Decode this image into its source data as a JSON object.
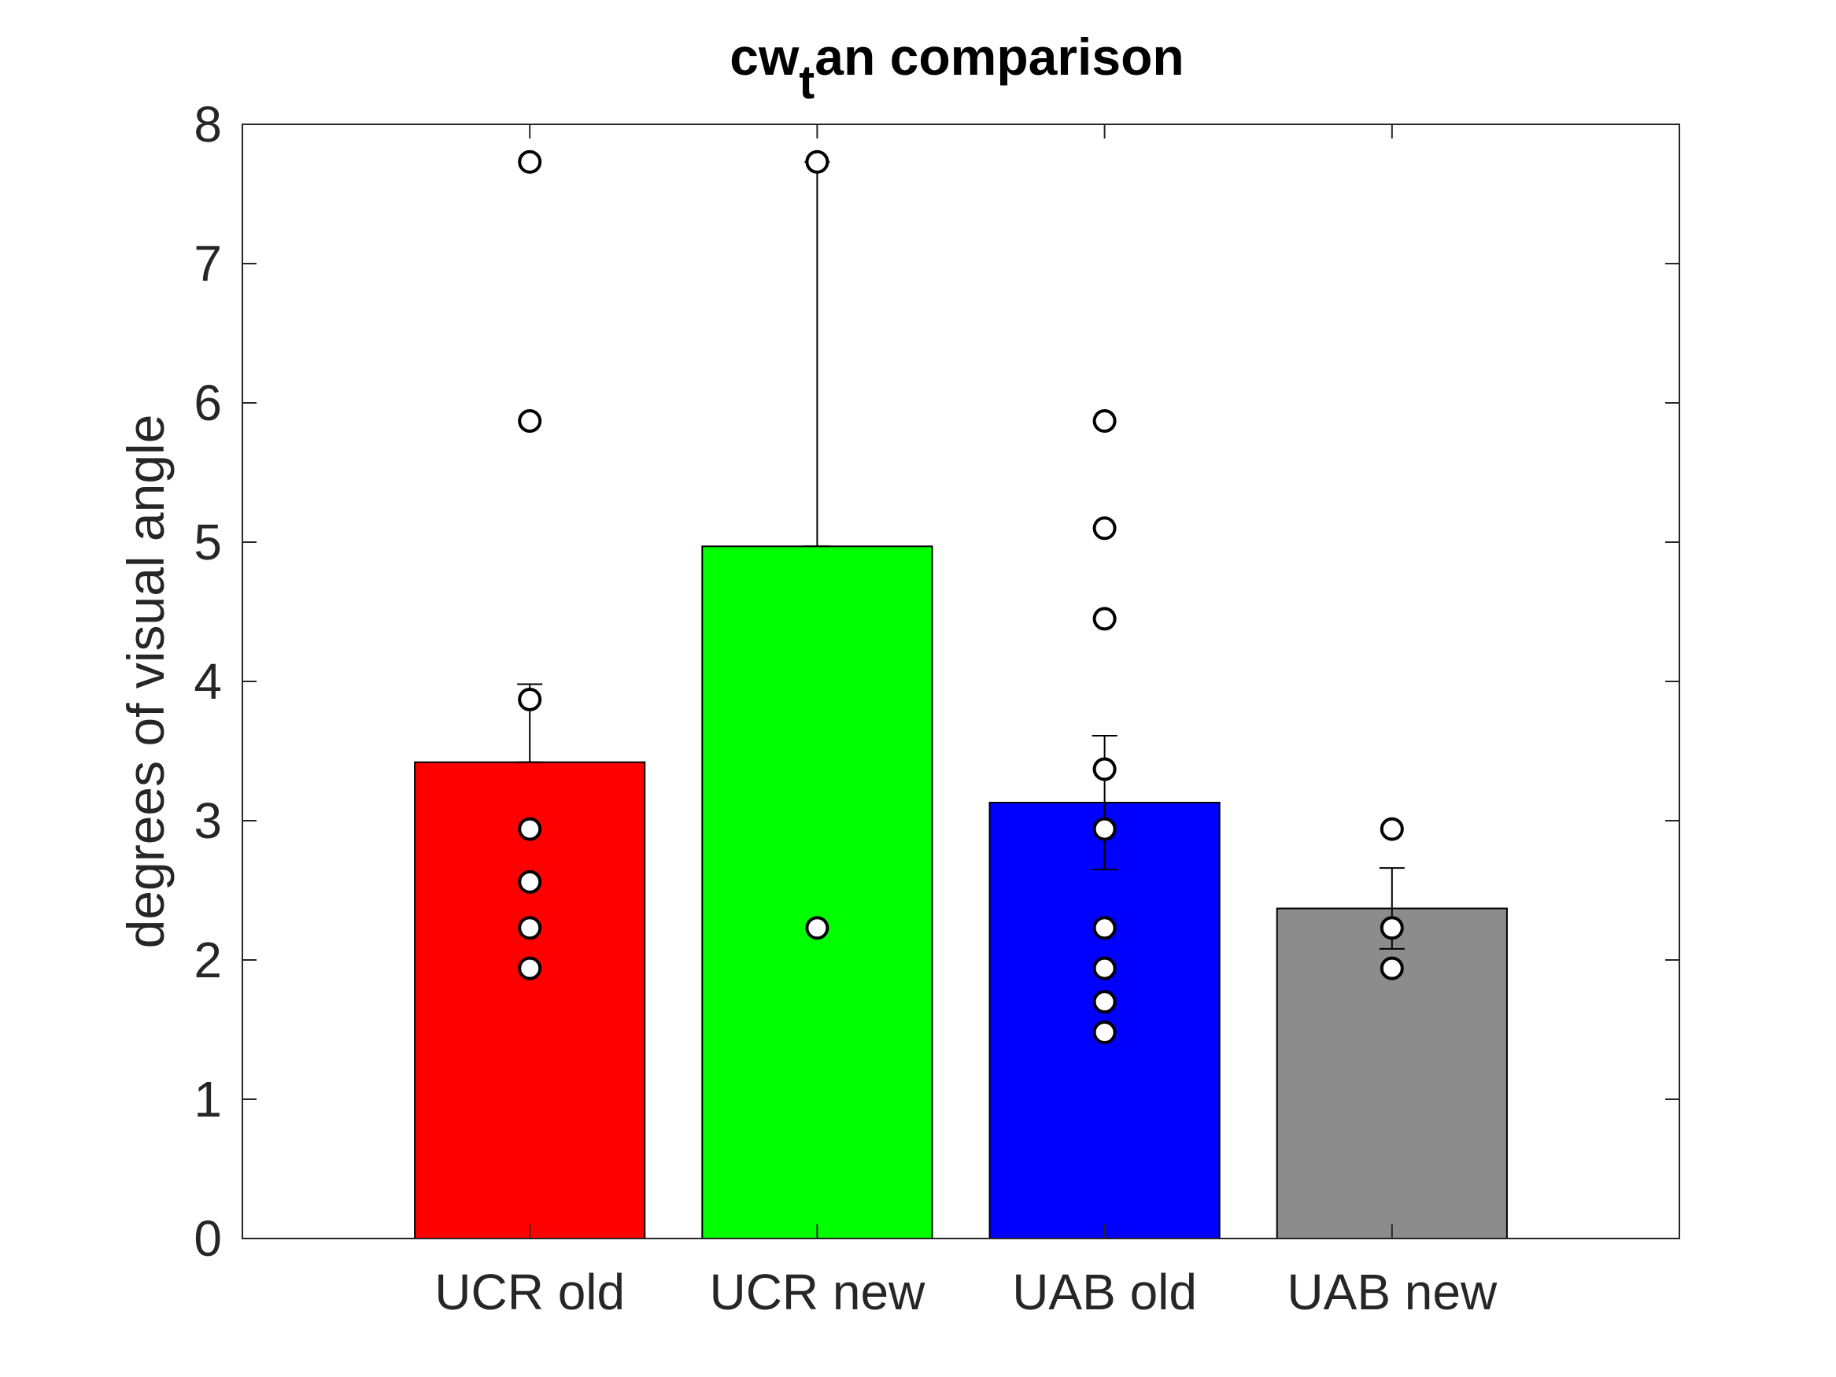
{
  "chart_data": {
    "type": "bar",
    "title": {
      "main": "cw",
      "sub": "t",
      "rest": "an comparison"
    },
    "xlabel": "",
    "ylabel": "degrees of visual angle",
    "ylim": [
      0,
      8
    ],
    "yticks": [
      0,
      1,
      2,
      3,
      4,
      5,
      6,
      7,
      8
    ],
    "grid": false,
    "categories": [
      "UCR old",
      "UCR new",
      "UAB old",
      "UAB new"
    ],
    "values": [
      3.42,
      4.97,
      3.13,
      2.37
    ],
    "colors": [
      "#ff0000",
      "#00ff00",
      "#0000ff",
      "#8c8c8c"
    ],
    "error_bars": [
      {
        "lower": 3.42,
        "upper": 3.98
      },
      {
        "lower": 4.97,
        "upper": 7.73
      },
      {
        "lower": 2.65,
        "upper": 3.61
      },
      {
        "lower": 2.08,
        "upper": 2.66
      }
    ],
    "points": [
      [
        7.73,
        5.87,
        3.87,
        2.94,
        2.56,
        2.23,
        1.94
      ],
      [
        7.73,
        2.23
      ],
      [
        5.87,
        5.1,
        4.45,
        3.37,
        2.94,
        2.23,
        1.94,
        1.7,
        1.48
      ],
      [
        2.94,
        2.23,
        1.94
      ]
    ]
  }
}
